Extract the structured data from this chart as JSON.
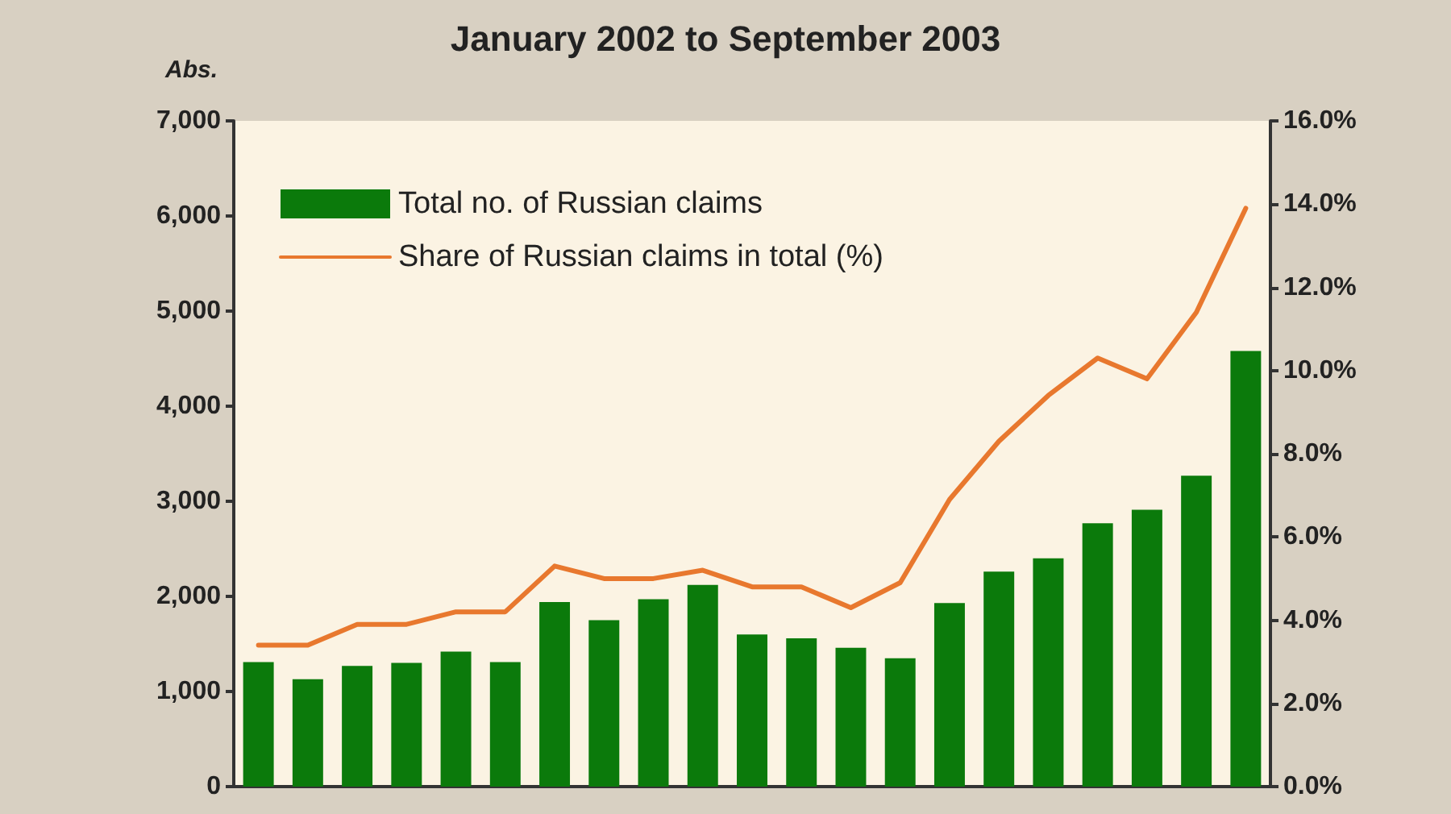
{
  "chart_data": {
    "type": "bar",
    "title": "January 2002 to September 2003",
    "ylabel": "Abs.",
    "categories": [
      null,
      null,
      null,
      null,
      null,
      null,
      null,
      null,
      null,
      null,
      null,
      null,
      null,
      null,
      null,
      null,
      null,
      null,
      null,
      null,
      null
    ],
    "series": [
      {
        "name": "Total no. of Russian claims",
        "color": "#0b7a0b",
        "values": [
          1310,
          1130,
          1270,
          1300,
          1420,
          1310,
          1940,
          1750,
          1970,
          2120,
          1600,
          1560,
          1460,
          1350,
          1930,
          2260,
          2400,
          2770,
          2910,
          3270,
          4580
        ]
      },
      {
        "name": "Share of Russian claims in total (%)",
        "type": "line",
        "axis": "y2",
        "color": "#e8782e",
        "values": [
          3.4,
          3.4,
          3.9,
          3.9,
          4.2,
          4.2,
          5.3,
          5.0,
          5.0,
          5.2,
          4.8,
          4.8,
          4.3,
          4.9,
          6.9,
          8.3,
          9.4,
          10.3,
          9.8,
          11.4,
          13.9
        ]
      }
    ],
    "ylim": [
      0,
      7000
    ],
    "yticks": [
      0,
      {
        "value": 1000,
        "label": "1,000"
      },
      {
        "value": 2000,
        "label": "2,000"
      },
      {
        "value": 3000,
        "label": "3,000"
      },
      {
        "value": 4000,
        "label": "4,000"
      },
      {
        "value": 5000,
        "label": "5,000"
      },
      {
        "value": 6000,
        "label": "6,000"
      },
      {
        "value": 7000,
        "label": "7,000"
      }
    ],
    "y2lim": [
      0,
      16
    ],
    "y2ticks": [
      {
        "value": 0,
        "label": "0.0%"
      },
      {
        "value": 2,
        "label": "2.0%"
      },
      {
        "value": 4,
        "label": "4.0%"
      },
      {
        "value": 6,
        "label": "6.0%"
      },
      {
        "value": 8,
        "label": "8.0%"
      },
      {
        "value": 10,
        "label": "10.0%"
      },
      {
        "value": 12,
        "label": "12.0%"
      },
      {
        "value": 14,
        "label": "14.0%"
      },
      {
        "value": 16,
        "label": "16.0%"
      }
    ],
    "legend": "top left",
    "grid": false,
    "marker": "none",
    "line_style": "solid"
  }
}
